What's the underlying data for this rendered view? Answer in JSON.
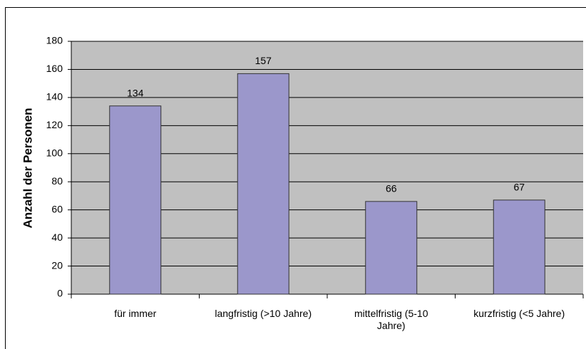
{
  "chart_data": {
    "type": "bar",
    "y_label": "Anzahl der Personen",
    "categories": [
      "für immer",
      "langfristig (>10 Jahre)",
      "mittelfristig (5-10 Jahre)",
      "kurzfristig (<5 Jahre)"
    ],
    "values": [
      134,
      157,
      66,
      67
    ],
    "color": "#9b97cb",
    "ylim": [
      0,
      180
    ],
    "yticks": [
      0,
      20,
      40,
      60,
      80,
      100,
      120,
      140,
      160,
      180
    ],
    "grid": true
  }
}
